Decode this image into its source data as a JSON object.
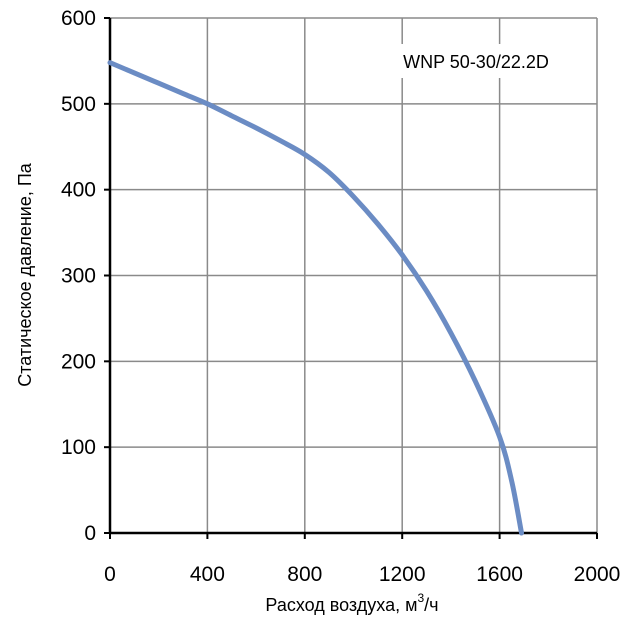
{
  "chart_data": {
    "type": "line",
    "title": "",
    "annotation": "WNP 50-30/22.2D",
    "xlabel": "Расход воздуха, м",
    "xlabel_sup": "3",
    "xlabel_suffix": "/ч",
    "ylabel": "Статическое давление, Па",
    "xlim": [
      0,
      2000
    ],
    "ylim": [
      0,
      600
    ],
    "x_ticks": [
      0,
      400,
      800,
      1200,
      1600,
      2000
    ],
    "y_ticks": [
      0,
      100,
      200,
      300,
      400,
      500,
      600
    ],
    "grid": true,
    "line_color": "#6b8cc4",
    "series": [
      {
        "x": [
          0,
          100,
          200,
          300,
          400,
          500,
          600,
          700,
          800,
          900,
          1000,
          1100,
          1200,
          1300,
          1400,
          1500,
          1600,
          1650,
          1690
        ],
        "y": [
          548,
          536,
          524,
          512,
          500,
          486,
          472,
          457,
          441,
          420,
          392,
          360,
          324,
          282,
          233,
          177,
          112,
          60,
          0
        ]
      }
    ]
  }
}
